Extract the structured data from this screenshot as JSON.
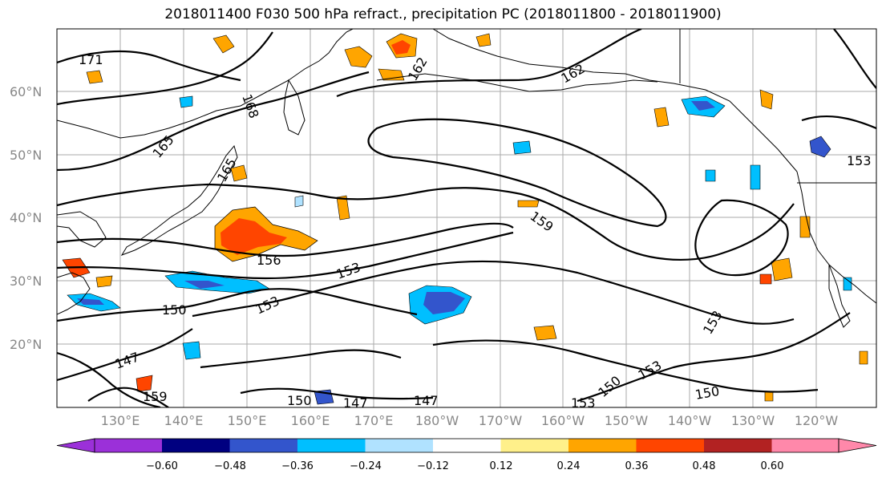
{
  "title": "2018011400 F030 500 hPa refract., precipitation PC (2018011800 - 2018011900)",
  "map": {
    "lat_ticks": [
      "60°N",
      "50°N",
      "40°N",
      "30°N",
      "20°N"
    ],
    "lon_ticks": [
      "130°E",
      "140°E",
      "150°E",
      "160°E",
      "170°E",
      "180°W",
      "170°W",
      "160°W",
      "150°W",
      "140°W",
      "130°W",
      "120°W"
    ],
    "contour_labels": [
      "171",
      "168",
      "165",
      "165",
      "162",
      "162",
      "159",
      "156",
      "153",
      "153",
      "150",
      "147",
      "153",
      "150",
      "147",
      "147",
      "150",
      "153",
      "153",
      "150",
      "159",
      "153"
    ]
  },
  "colorbar": {
    "ticks": [
      "−0.60",
      "−0.48",
      "−0.36",
      "−0.24",
      "−0.12",
      "0.12",
      "0.24",
      "0.36",
      "0.48",
      "0.60"
    ],
    "colors": [
      "#9b30d9",
      "#000080",
      "#3355cc",
      "#00bfff",
      "#b0e2ff",
      "#ffffff",
      "#fff08a",
      "#ffa500",
      "#ff4500",
      "#b22222",
      "#ff88aa"
    ]
  }
}
